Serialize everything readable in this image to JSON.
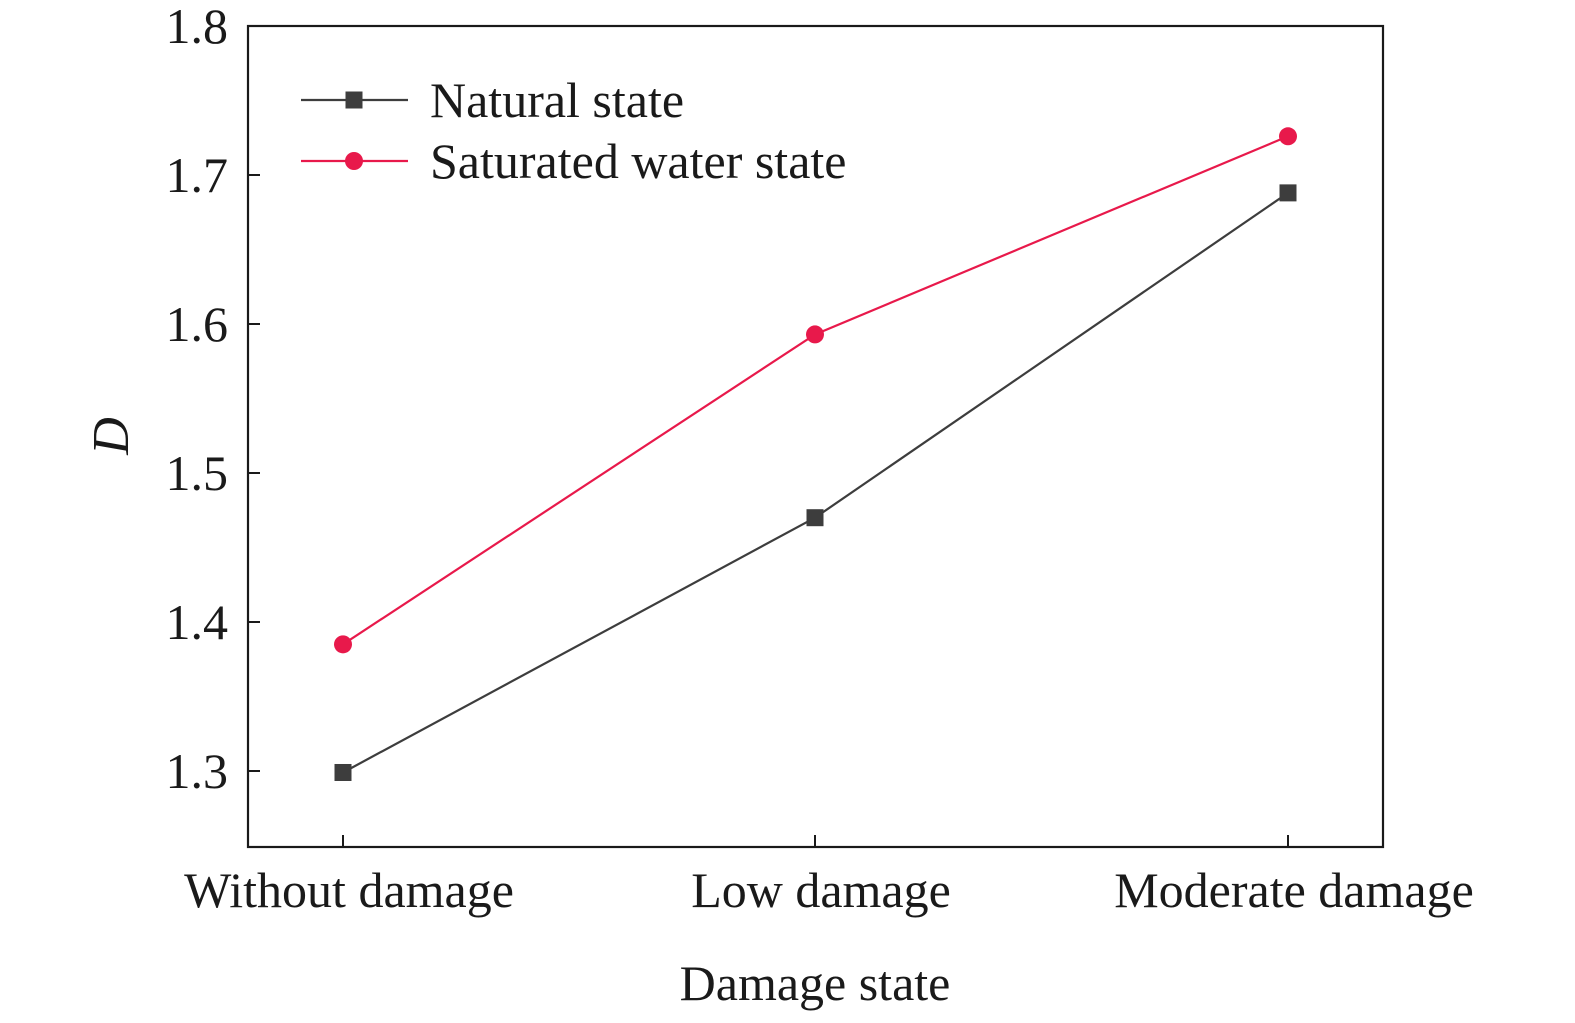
{
  "chart_data": {
    "type": "line",
    "title": "",
    "xlabel": "Damage state",
    "ylabel": "D",
    "categories": [
      "Without damage",
      "Low damage",
      "Moderate damage"
    ],
    "ylim": [
      1.25,
      1.8
    ],
    "yticks": [
      1.3,
      1.4,
      1.5,
      1.6,
      1.7,
      1.8
    ],
    "ytick_labels": [
      "1.3",
      "1.4",
      "1.5",
      "1.6",
      "1.7",
      "1.8"
    ],
    "grid": false,
    "legend_position": "top-left",
    "series": [
      {
        "name": "Natural state",
        "values": [
          1.299,
          1.47,
          1.688
        ],
        "color": "#3d3d3d",
        "marker": "square"
      },
      {
        "name": "Saturated water state",
        "values": [
          1.385,
          1.593,
          1.726
        ],
        "color": "#e8194b",
        "marker": "circle"
      }
    ]
  }
}
